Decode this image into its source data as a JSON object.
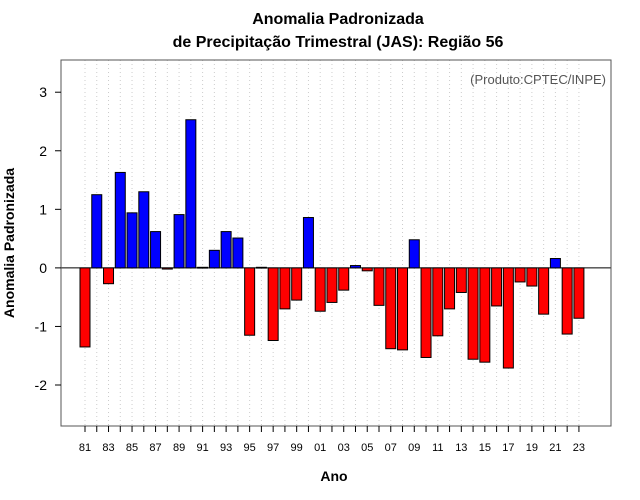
{
  "chart_data": {
    "type": "bar",
    "title_line1": "Anomalia Padronizada",
    "title_line2": "de Precipitação Trimestral (JAS): Região 56",
    "credit": "(Produto:CPTEC/INPE)",
    "xlabel": "Ano",
    "ylabel": "Anomalia Padronizada",
    "ylim": [
      -2.7,
      3.55
    ],
    "yticks": [
      -2,
      -1,
      0,
      1,
      2,
      3
    ],
    "grid": "vertical-dotted",
    "positive_color": "#0000ff",
    "negative_color": "#ff0000",
    "categories": [
      "81",
      "82",
      "83",
      "84",
      "85",
      "86",
      "87",
      "88",
      "89",
      "90",
      "91",
      "92",
      "93",
      "94",
      "95",
      "96",
      "97",
      "98",
      "99",
      "00",
      "01",
      "02",
      "03",
      "04",
      "05",
      "06",
      "07",
      "08",
      "09",
      "10",
      "11",
      "12",
      "13",
      "14",
      "15",
      "16",
      "17",
      "18",
      "19",
      "20",
      "21",
      "22",
      "23"
    ],
    "x_tick_labels": [
      "81",
      "83",
      "85",
      "87",
      "89",
      "91",
      "93",
      "95",
      "97",
      "99",
      "01",
      "03",
      "05",
      "07",
      "09",
      "11",
      "13",
      "15",
      "17",
      "19",
      "21",
      "23"
    ],
    "values": [
      -1.35,
      1.25,
      -0.27,
      1.63,
      0.94,
      1.3,
      0.62,
      -0.02,
      0.91,
      2.53,
      0.01,
      0.3,
      0.62,
      0.51,
      -1.15,
      0.01,
      -1.24,
      -0.7,
      -0.55,
      0.86,
      -0.74,
      -0.59,
      -0.38,
      0.04,
      -0.05,
      -0.64,
      -1.38,
      -1.4,
      0.48,
      -1.53,
      -1.16,
      -0.7,
      -0.42,
      -1.56,
      -1.61,
      -0.65,
      -1.71,
      -0.24,
      -0.31,
      -0.79,
      0.16,
      -1.13,
      -0.86
    ]
  }
}
